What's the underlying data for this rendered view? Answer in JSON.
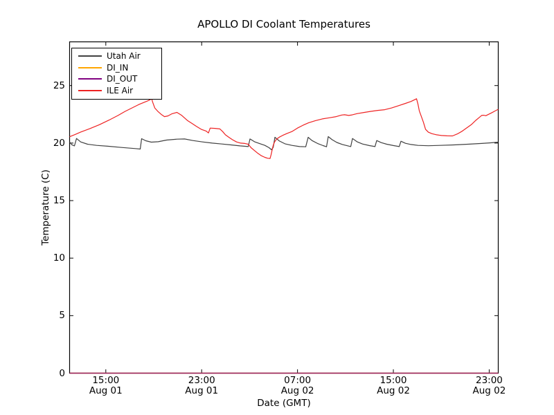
{
  "figure": {
    "background": "#ffffff",
    "axes_color": "#000000"
  },
  "chart_data": {
    "type": "line",
    "title": "APOLLO DI Coolant Temperatures",
    "xlabel": "Date (GMT)",
    "ylabel": "Temperature (C)",
    "ylim": [
      0,
      28.8
    ],
    "grid": false,
    "legend_position": "upper left",
    "x_axis": {
      "ticks": [
        {
          "frac": 0.0845,
          "time": "15:00",
          "date": "Aug 01"
        },
        {
          "frac": 0.3081,
          "time": "23:00",
          "date": "Aug 01"
        },
        {
          "frac": 0.5317,
          "time": "07:00",
          "date": "Aug 02"
        },
        {
          "frac": 0.7553,
          "time": "15:00",
          "date": "Aug 02"
        },
        {
          "frac": 0.9789,
          "time": "23:00",
          "date": "Aug 02"
        }
      ]
    },
    "y_axis": {
      "ticks": [
        0,
        5,
        10,
        15,
        20,
        25
      ]
    },
    "series": [
      {
        "name": "Utah Air",
        "color": "#404040",
        "width": 1.2,
        "points": [
          [
            0,
            20.1
          ],
          [
            0.0048,
            19.86
          ],
          [
            0.0113,
            19.76
          ],
          [
            0.0162,
            20.4
          ],
          [
            0.0258,
            20.1
          ],
          [
            0.042,
            19.9
          ],
          [
            0.063,
            19.8
          ],
          [
            0.0889,
            19.73
          ],
          [
            0.1212,
            19.62
          ],
          [
            0.1535,
            19.52
          ],
          [
            0.1648,
            19.48
          ],
          [
            0.168,
            20.38
          ],
          [
            0.1777,
            20.2
          ],
          [
            0.1906,
            20.08
          ],
          [
            0.2068,
            20.12
          ],
          [
            0.2262,
            20.26
          ],
          [
            0.2504,
            20.34
          ],
          [
            0.2682,
            20.36
          ],
          [
            0.2876,
            20.22
          ],
          [
            0.3102,
            20.1
          ],
          [
            0.3328,
            20.0
          ],
          [
            0.3554,
            19.92
          ],
          [
            0.3764,
            19.84
          ],
          [
            0.3974,
            19.76
          ],
          [
            0.4168,
            19.7
          ],
          [
            0.4209,
            20.36
          ],
          [
            0.4314,
            20.12
          ],
          [
            0.4426,
            19.97
          ],
          [
            0.4556,
            19.8
          ],
          [
            0.4653,
            19.6
          ],
          [
            0.4709,
            19.42
          ],
          [
            0.475,
            19.62
          ],
          [
            0.479,
            20.5
          ],
          [
            0.4895,
            20.18
          ],
          [
            0.5024,
            19.94
          ],
          [
            0.5186,
            19.8
          ],
          [
            0.5363,
            19.7
          ],
          [
            0.5509,
            19.68
          ],
          [
            0.5565,
            20.5
          ],
          [
            0.5654,
            20.22
          ],
          [
            0.5783,
            19.97
          ],
          [
            0.5913,
            19.78
          ],
          [
            0.5993,
            19.68
          ],
          [
            0.6034,
            20.56
          ],
          [
            0.6123,
            20.3
          ],
          [
            0.6236,
            20.05
          ],
          [
            0.6365,
            19.88
          ],
          [
            0.6494,
            19.76
          ],
          [
            0.6559,
            19.7
          ],
          [
            0.6599,
            20.4
          ],
          [
            0.6704,
            20.12
          ],
          [
            0.6833,
            19.92
          ],
          [
            0.6995,
            19.78
          ],
          [
            0.7124,
            19.7
          ],
          [
            0.7165,
            20.22
          ],
          [
            0.727,
            20.04
          ],
          [
            0.7399,
            19.9
          ],
          [
            0.7561,
            19.78
          ],
          [
            0.769,
            19.7
          ],
          [
            0.773,
            20.16
          ],
          [
            0.7835,
            19.98
          ],
          [
            0.7965,
            19.88
          ],
          [
            0.8126,
            19.8
          ],
          [
            0.8368,
            19.77
          ],
          [
            0.8643,
            19.8
          ],
          [
            0.8966,
            19.84
          ],
          [
            0.9289,
            19.9
          ],
          [
            0.9612,
            19.97
          ],
          [
            0.9822,
            20.02
          ],
          [
            1.0,
            20.08
          ]
        ]
      },
      {
        "name": "DI_IN",
        "color": "#ffa500",
        "width": 1.4,
        "points": [
          [
            0,
            0
          ],
          [
            1,
            0
          ]
        ]
      },
      {
        "name": "DI_OUT",
        "color": "#800080",
        "width": 1.4,
        "opacity": 0.8,
        "points": [
          [
            0,
            0
          ],
          [
            1,
            0
          ]
        ]
      },
      {
        "name": "ILE Air",
        "color": "#ee2222",
        "width": 1.2,
        "points": [
          [
            0,
            20.55
          ],
          [
            0.0129,
            20.75
          ],
          [
            0.0258,
            20.96
          ],
          [
            0.0469,
            21.25
          ],
          [
            0.0695,
            21.6
          ],
          [
            0.0921,
            22.0
          ],
          [
            0.1131,
            22.4
          ],
          [
            0.1292,
            22.75
          ],
          [
            0.1454,
            23.05
          ],
          [
            0.1616,
            23.35
          ],
          [
            0.1745,
            23.55
          ],
          [
            0.1842,
            23.7
          ],
          [
            0.1915,
            23.85
          ],
          [
            0.1939,
            23.55
          ],
          [
            0.1987,
            23.05
          ],
          [
            0.2068,
            22.72
          ],
          [
            0.2149,
            22.46
          ],
          [
            0.2213,
            22.3
          ],
          [
            0.2294,
            22.36
          ],
          [
            0.2391,
            22.55
          ],
          [
            0.2504,
            22.67
          ],
          [
            0.2617,
            22.4
          ],
          [
            0.2746,
            21.97
          ],
          [
            0.286,
            21.7
          ],
          [
            0.2957,
            21.46
          ],
          [
            0.307,
            21.2
          ],
          [
            0.3183,
            21.05
          ],
          [
            0.3239,
            20.88
          ],
          [
            0.328,
            21.3
          ],
          [
            0.3393,
            21.28
          ],
          [
            0.3506,
            21.23
          ],
          [
            0.357,
            21.0
          ],
          [
            0.3635,
            20.72
          ],
          [
            0.3716,
            20.5
          ],
          [
            0.3796,
            20.3
          ],
          [
            0.3893,
            20.1
          ],
          [
            0.399,
            20.0
          ],
          [
            0.4087,
            19.97
          ],
          [
            0.4168,
            19.9
          ],
          [
            0.4233,
            19.6
          ],
          [
            0.4314,
            19.35
          ],
          [
            0.4394,
            19.1
          ],
          [
            0.4475,
            18.9
          ],
          [
            0.4556,
            18.76
          ],
          [
            0.462,
            18.68
          ],
          [
            0.4677,
            18.66
          ],
          [
            0.4701,
            19.0
          ],
          [
            0.4725,
            19.4
          ],
          [
            0.475,
            19.8
          ],
          [
            0.4782,
            20.1
          ],
          [
            0.483,
            20.35
          ],
          [
            0.4895,
            20.52
          ],
          [
            0.4976,
            20.68
          ],
          [
            0.5073,
            20.84
          ],
          [
            0.5186,
            21.0
          ],
          [
            0.5315,
            21.3
          ],
          [
            0.5444,
            21.55
          ],
          [
            0.5573,
            21.76
          ],
          [
            0.5735,
            21.95
          ],
          [
            0.5896,
            22.1
          ],
          [
            0.6058,
            22.2
          ],
          [
            0.6219,
            22.3
          ],
          [
            0.6349,
            22.44
          ],
          [
            0.6413,
            22.46
          ],
          [
            0.651,
            22.4
          ],
          [
            0.6591,
            22.45
          ],
          [
            0.6704,
            22.56
          ],
          [
            0.6866,
            22.66
          ],
          [
            0.7027,
            22.76
          ],
          [
            0.7189,
            22.84
          ],
          [
            0.7351,
            22.9
          ],
          [
            0.7512,
            23.05
          ],
          [
            0.7674,
            23.25
          ],
          [
            0.7835,
            23.45
          ],
          [
            0.7965,
            23.62
          ],
          [
            0.8094,
            23.85
          ],
          [
            0.8126,
            23.4
          ],
          [
            0.8158,
            22.8
          ],
          [
            0.8207,
            22.3
          ],
          [
            0.8255,
            21.8
          ],
          [
            0.8303,
            21.2
          ],
          [
            0.8368,
            20.95
          ],
          [
            0.8449,
            20.82
          ],
          [
            0.8562,
            20.72
          ],
          [
            0.8675,
            20.66
          ],
          [
            0.8804,
            20.63
          ],
          [
            0.8934,
            20.62
          ],
          [
            0.9047,
            20.8
          ],
          [
            0.9144,
            21.0
          ],
          [
            0.9257,
            21.3
          ],
          [
            0.937,
            21.6
          ],
          [
            0.9483,
            22.0
          ],
          [
            0.9548,
            22.2
          ],
          [
            0.9612,
            22.4
          ],
          [
            0.966,
            22.42
          ],
          [
            0.9709,
            22.38
          ],
          [
            0.9774,
            22.5
          ],
          [
            0.9855,
            22.65
          ],
          [
            0.9919,
            22.78
          ],
          [
            1.0,
            22.94
          ]
        ]
      }
    ]
  }
}
